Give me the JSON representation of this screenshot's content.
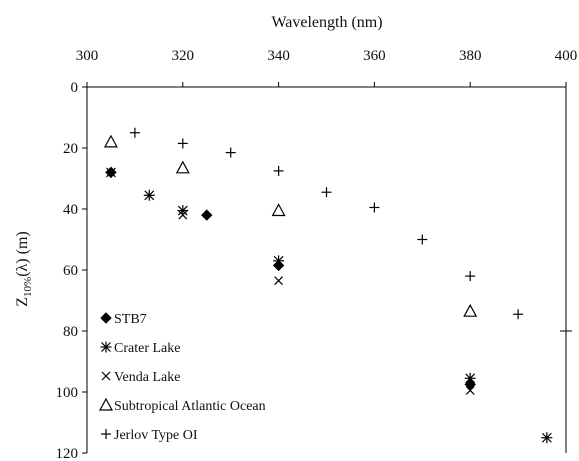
{
  "chart_data": {
    "type": "scatter",
    "title": "",
    "xlabel": "Wavelength (nm)",
    "ylabel": "Z10%(λ) (m)",
    "ylabel_main": "Z",
    "ylabel_sub": "10%",
    "ylabel_rest": "(λ) (m)",
    "x_axis_position": "top",
    "y_inverted": true,
    "xlim": [
      300,
      400
    ],
    "ylim": [
      0,
      120
    ],
    "xticks": [
      300,
      320,
      340,
      360,
      380,
      400
    ],
    "yticks": [
      0,
      20,
      40,
      60,
      80,
      100,
      120
    ],
    "grid": false,
    "legend_position": "bottom-left",
    "series": [
      {
        "name": "STB7",
        "marker": "filled-diamond",
        "legend_symbol": "◆",
        "x": [
          305,
          325,
          340,
          380
        ],
        "y": [
          28,
          42,
          58.5,
          97.5
        ]
      },
      {
        "name": "Crater Lake",
        "marker": "asterisk",
        "legend_symbol": "✳",
        "x": [
          305,
          313,
          320,
          340,
          380,
          396
        ],
        "y": [
          28,
          35.5,
          40.5,
          57,
          95.5,
          115
        ]
      },
      {
        "name": "Venda Lake",
        "marker": "x",
        "legend_symbol": "×",
        "x": [
          320,
          340,
          380
        ],
        "y": [
          42,
          63.5,
          99.5
        ]
      },
      {
        "name": "Subtropical Atlantic Ocean",
        "marker": "open-triangle",
        "legend_symbol": "△",
        "x": [
          305,
          320,
          340,
          380
        ],
        "y": [
          18,
          26.5,
          40.5,
          73.5
        ]
      },
      {
        "name": "Jerlov Type OI",
        "marker": "plus",
        "legend_symbol": "+",
        "x": [
          310,
          320,
          330,
          340,
          350,
          360,
          370,
          380,
          390
        ],
        "y": [
          15,
          18.5,
          21.5,
          27.5,
          34.5,
          39.5,
          50,
          62,
          74.5
        ]
      }
    ]
  }
}
